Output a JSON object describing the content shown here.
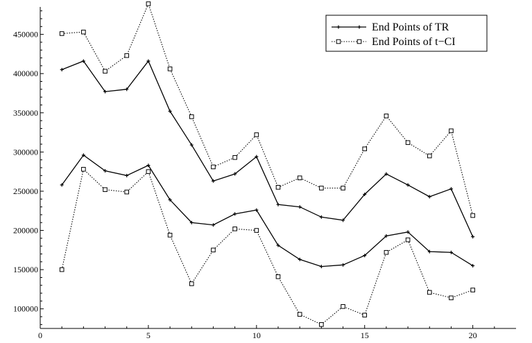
{
  "chart_data": {
    "type": "line",
    "title": "",
    "xlabel": "",
    "ylabel": "",
    "xlim": [
      0,
      22
    ],
    "ylim": [
      75000,
      485000
    ],
    "grid": false,
    "legend_position": "top-right",
    "x_ticks": [
      0,
      5,
      10,
      15,
      20
    ],
    "x_tick_labels": [
      "0",
      "5",
      "10",
      "15",
      "20"
    ],
    "y_ticks": [
      100000,
      150000,
      200000,
      250000,
      300000,
      350000,
      400000,
      450000
    ],
    "y_tick_labels": [
      "100000",
      "150000",
      "200000",
      "250000",
      "300000",
      "350000",
      "400000",
      "450000"
    ],
    "x": [
      1,
      2,
      3,
      4,
      5,
      6,
      7,
      8,
      9,
      10,
      11,
      12,
      13,
      14,
      15,
      16,
      17,
      18,
      19,
      20
    ],
    "series": [
      {
        "name": "End Points of TR",
        "style": "solid",
        "marker": "plus",
        "color": "#000000",
        "lines": [
          [
            405000,
            416000,
            377000,
            380000,
            416000,
            352000,
            309000,
            263000,
            272000,
            294000,
            233000,
            230000,
            217000,
            213000,
            246000,
            272000,
            258000,
            243000,
            253000,
            192000
          ],
          [
            258000,
            296000,
            276000,
            270000,
            283000,
            239000,
            210000,
            207000,
            221000,
            226000,
            181000,
            163000,
            154000,
            156000,
            168000,
            193000,
            198000,
            173000,
            172000,
            155000
          ]
        ]
      },
      {
        "name": "End Points of t−CI",
        "style": "dotted",
        "marker": "square",
        "color": "#000000",
        "lines": [
          [
            451000,
            453000,
            403000,
            423000,
            489000,
            406000,
            345000,
            281000,
            293000,
            322000,
            255000,
            267000,
            254000,
            254000,
            304000,
            346000,
            312000,
            295000,
            327000,
            219000
          ],
          [
            150000,
            278000,
            252000,
            249000,
            275000,
            194000,
            132000,
            175000,
            202000,
            200000,
            141000,
            93000,
            80000,
            103000,
            92000,
            172000,
            188000,
            121000,
            114000,
            124000
          ]
        ]
      }
    ]
  }
}
